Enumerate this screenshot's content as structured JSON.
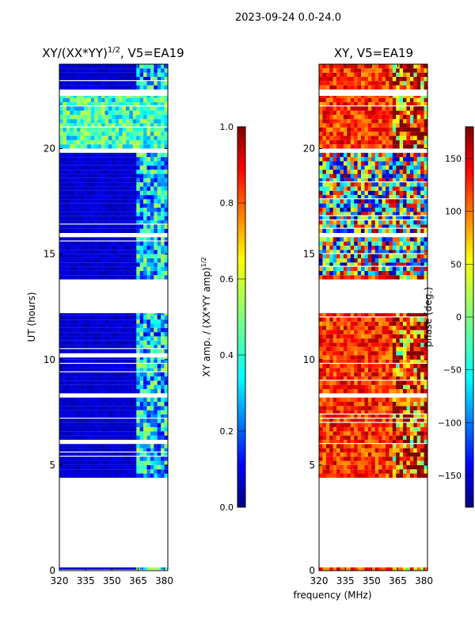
{
  "page_title": "2023-09-24 0.0-24.0",
  "shared_xlabel": "frequency (MHz)",
  "colormap": [
    "#00007f",
    "#0000ff",
    "#007fff",
    "#00ffff",
    "#7fff7f",
    "#ffff00",
    "#ff7f00",
    "#ff0000",
    "#7f0000"
  ],
  "chart_data": [
    {
      "type": "heatmap",
      "title": "XY/(XX*YY)",
      "title_sup": "1/2",
      "title_suffix": ", V5=EA19",
      "xlabel": "",
      "ylabel": "UT (hours)",
      "xlim": [
        320,
        382
      ],
      "ylim": [
        0,
        24
      ],
      "xticks": [
        "320",
        "335",
        "350",
        "365",
        "380"
      ],
      "xtick_values": [
        320,
        335,
        350,
        365,
        380
      ],
      "yticks": [
        "0",
        "5",
        "10",
        "15",
        "20"
      ],
      "ytick_values": [
        0,
        5,
        10,
        15,
        20
      ],
      "colorbar": {
        "label": "XY amp. / (XX*YY amp)",
        "label_sup": "1/2",
        "range": [
          0.0,
          1.0
        ],
        "ticks": [
          "0.0",
          "0.2",
          "0.4",
          "0.6",
          "0.8",
          "1.0"
        ],
        "tick_values": [
          0.0,
          0.2,
          0.4,
          0.6,
          0.8,
          1.0
        ]
      },
      "data_blocks_hours": [
        [
          0.0,
          0.15
        ],
        [
          4.4,
          6.0
        ],
        [
          6.2,
          8.2
        ],
        [
          8.4,
          10.1
        ],
        [
          10.3,
          12.2
        ],
        [
          13.8,
          15.8
        ],
        [
          16.0,
          19.8
        ],
        [
          20.0,
          22.5
        ],
        [
          22.8,
          24.0
        ]
      ],
      "summary": {
        "background_value": 0.05,
        "high_band_mhz": [
          363,
          381
        ],
        "high_band_value": 0.35,
        "daytime_hours": [
          19.8,
          22.5
        ],
        "daytime_value": 0.45
      }
    },
    {
      "type": "heatmap",
      "title": "XY, V5=EA19",
      "xlabel": "",
      "ylabel": "",
      "xlim": [
        320,
        382
      ],
      "ylim": [
        0,
        24
      ],
      "xticks": [
        "320",
        "335",
        "350",
        "365",
        "380"
      ],
      "xtick_values": [
        320,
        335,
        350,
        365,
        380
      ],
      "yticks": [
        "0",
        "5",
        "10",
        "15",
        "20"
      ],
      "ytick_values": [
        0,
        5,
        10,
        15,
        20
      ],
      "colorbar": {
        "label": "phase (deg.)",
        "range": [
          -180,
          180
        ],
        "ticks": [
          "−150",
          "−100",
          "−50",
          "0",
          "50",
          "100",
          "150"
        ],
        "tick_values": [
          -150,
          -100,
          -50,
          0,
          50,
          100,
          150
        ]
      },
      "data_blocks_hours": [
        [
          0.0,
          0.15
        ],
        [
          4.4,
          8.2
        ],
        [
          8.4,
          12.2
        ],
        [
          13.8,
          15.8
        ],
        [
          16.0,
          19.8
        ],
        [
          20.0,
          22.5
        ],
        [
          22.8,
          24.0
        ]
      ],
      "summary": {
        "dominant_phase_deg": 120,
        "noisy_hours": [
          14.0,
          19.8
        ],
        "noisy_phase_range_deg": [
          -180,
          180
        ]
      }
    }
  ]
}
